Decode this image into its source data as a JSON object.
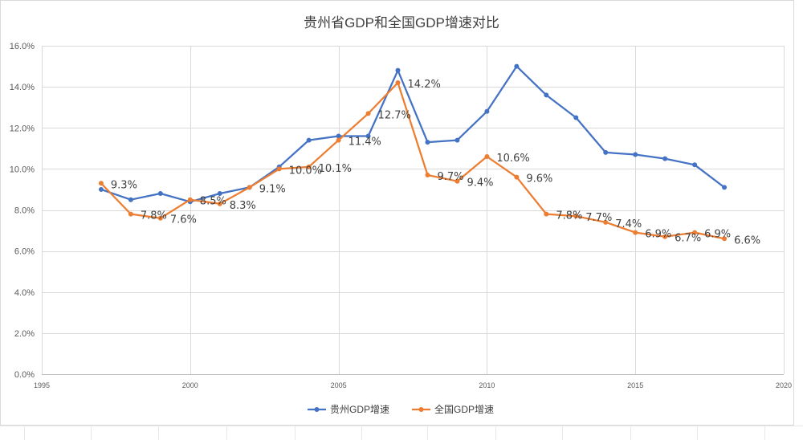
{
  "chart_data": {
    "type": "line",
    "title": "贵州省GDP和全国GDP增速对比",
    "xlabel": "",
    "ylabel": "",
    "xlim": [
      1995,
      2020
    ],
    "ylim": [
      0,
      16
    ],
    "grid": true,
    "legend": "bottom",
    "x_ticks": [
      {
        "value": 1995,
        "label": "1995"
      },
      {
        "value": 2000,
        "label": "2000"
      },
      {
        "value": 2005,
        "label": "2005"
      },
      {
        "value": 2010,
        "label": "2010"
      },
      {
        "value": 2015,
        "label": "2015"
      },
      {
        "value": 2020,
        "label": "2020"
      }
    ],
    "y_ticks": [
      {
        "value": 0,
        "label": "0.0%"
      },
      {
        "value": 2,
        "label": "2.0%"
      },
      {
        "value": 4,
        "label": "4.0%"
      },
      {
        "value": 6,
        "label": "6.0%"
      },
      {
        "value": 8,
        "label": "8.0%"
      },
      {
        "value": 10,
        "label": "10.0%"
      },
      {
        "value": 12,
        "label": "12.0%"
      },
      {
        "value": 14,
        "label": "14.0%"
      },
      {
        "value": 16,
        "label": "16.0%"
      }
    ],
    "x": [
      1997,
      1998,
      1999,
      2000,
      2001,
      2002,
      2003,
      2004,
      2005,
      2006,
      2007,
      2008,
      2009,
      2010,
      2011,
      2012,
      2013,
      2014,
      2015,
      2016,
      2017,
      2018
    ],
    "series": [
      {
        "name": "贵州GDP增速",
        "color": "#4472C4",
        "marker": "circle",
        "values": [
          9.0,
          8.5,
          8.8,
          8.4,
          8.8,
          9.1,
          10.1,
          11.4,
          11.6,
          11.6,
          14.8,
          11.3,
          11.4,
          12.8,
          15.0,
          13.6,
          12.5,
          10.8,
          10.7,
          10.5,
          10.2,
          9.1
        ],
        "labels": []
      },
      {
        "name": "全国GDP增速",
        "color": "#ED7D31",
        "marker": "circle",
        "values": [
          9.3,
          7.8,
          7.6,
          8.5,
          8.3,
          9.1,
          10.0,
          10.1,
          11.4,
          12.7,
          14.2,
          9.7,
          9.4,
          10.6,
          9.6,
          7.8,
          7.7,
          7.4,
          6.9,
          6.7,
          6.9,
          6.6
        ],
        "labels": [
          "9.3%",
          "7.8%",
          "7.6%",
          "8.5%",
          "8.3%",
          "9.1%",
          "10.0%",
          "10.1%",
          "11.4%",
          "12.7%",
          "14.2%",
          "9.7%",
          "9.4%",
          "10.6%",
          "9.6%",
          "7.8%",
          "7.7%",
          "7.4%",
          "6.9%",
          "6.7%",
          "6.9%",
          "6.6%"
        ]
      }
    ]
  }
}
